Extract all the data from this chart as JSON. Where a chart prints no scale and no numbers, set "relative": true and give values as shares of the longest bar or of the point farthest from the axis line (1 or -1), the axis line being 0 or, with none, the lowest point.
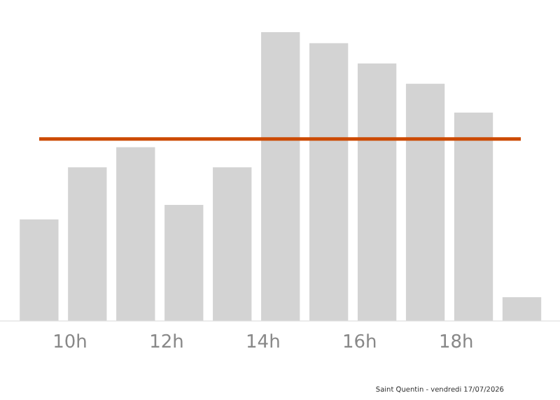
{
  "chart_data": {
    "type": "bar",
    "relative": true,
    "x": [
      9.36,
      10.36,
      11.36,
      12.36,
      13.36,
      14.36,
      15.36,
      16.36,
      17.36,
      18.36,
      19.36
    ],
    "values": [
      0.35,
      0.53,
      0.6,
      0.4,
      0.53,
      1,
      0.96,
      0.89,
      0.82,
      0.72,
      0.08
    ],
    "color": "#d3d3d3",
    "xlim": [
      8.55,
      20.15
    ],
    "xticks": [
      {
        "value": 10,
        "label": "10h"
      },
      {
        "value": 12,
        "label": "12h"
      },
      {
        "value": 14,
        "label": "14h"
      },
      {
        "value": 16,
        "label": "16h"
      },
      {
        "value": 18,
        "label": "18h"
      }
    ],
    "ref_lines": [
      {
        "axis": "y",
        "value": 0.63,
        "color": "#cc4a00"
      }
    ],
    "annotations": [
      "Saint Quentin - vendredi 17/07/2026"
    ],
    "grid": false,
    "legend": false
  }
}
